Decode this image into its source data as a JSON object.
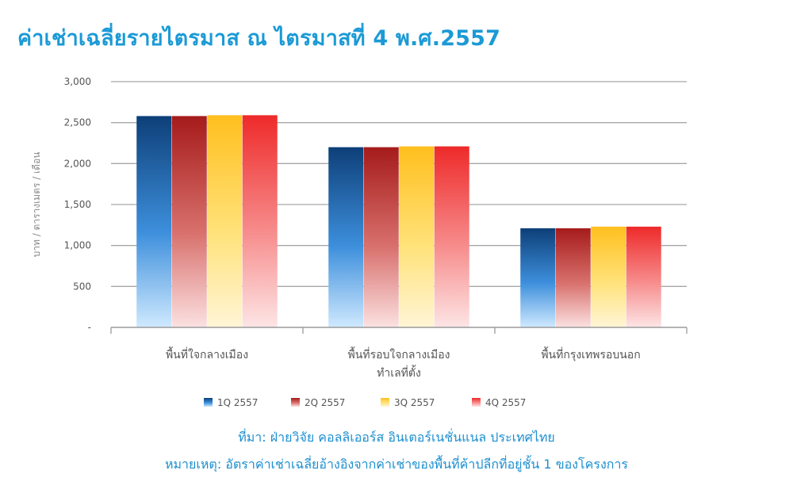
{
  "chart_data": {
    "type": "bar",
    "title": "ค่าเช่าเฉลี่ยรายไตรมาส ณ ไตรมาสที่ 4 พ.ศ.2557",
    "ylabel": "บาท / ตารางเมตร / เดือน",
    "xlabel": "",
    "ylim": [
      0,
      3000
    ],
    "yticks": [
      0,
      500,
      1000,
      1500,
      2000,
      2500,
      3000
    ],
    "ytick_labels": [
      "-",
      "500",
      "1,000",
      "1,500",
      "2,000",
      "2,500",
      "3,000"
    ],
    "grid": true,
    "legend_position": "bottom",
    "categories": [
      [
        "พื้นที่ใจกลางเมือง"
      ],
      [
        "พื้นที่รอบใจกลางเมือง",
        "ทำเลที่ตั้ง"
      ],
      [
        "พื้นที่กรุงเทพรอบนอก"
      ]
    ],
    "series": [
      {
        "name": "1Q 2557",
        "values": [
          2580,
          2200,
          1210
        ]
      },
      {
        "name": "2Q 2557",
        "values": [
          2580,
          2200,
          1210
        ]
      },
      {
        "name": "3Q 2557",
        "values": [
          2590,
          2210,
          1230
        ]
      },
      {
        "name": "4Q 2557",
        "values": [
          2590,
          2210,
          1230
        ]
      }
    ],
    "series_colors": [
      [
        "#0d3f78",
        "#3d8fdc",
        "#cfe9ff"
      ],
      [
        "#a51b1b",
        "#d8706c",
        "#fbe1e1"
      ],
      [
        "#ffbf1e",
        "#ffe27a",
        "#fff5d6"
      ],
      [
        "#ee2a2a",
        "#f78c8c",
        "#fde5e5"
      ]
    ]
  },
  "footer": {
    "source": "ที่มา: ฝ่ายวิจัย คอลลิเออร์ส อินเตอร์เนชั่นแนล ประเทศไทย",
    "note": "หมายเหตุ: อัตราค่าเช่าเฉลี่ยอ้างอิงจากค่าเช่าของพื้นที่ค้าปลีกที่อยู่ชั้น 1 ของโครงการ"
  }
}
